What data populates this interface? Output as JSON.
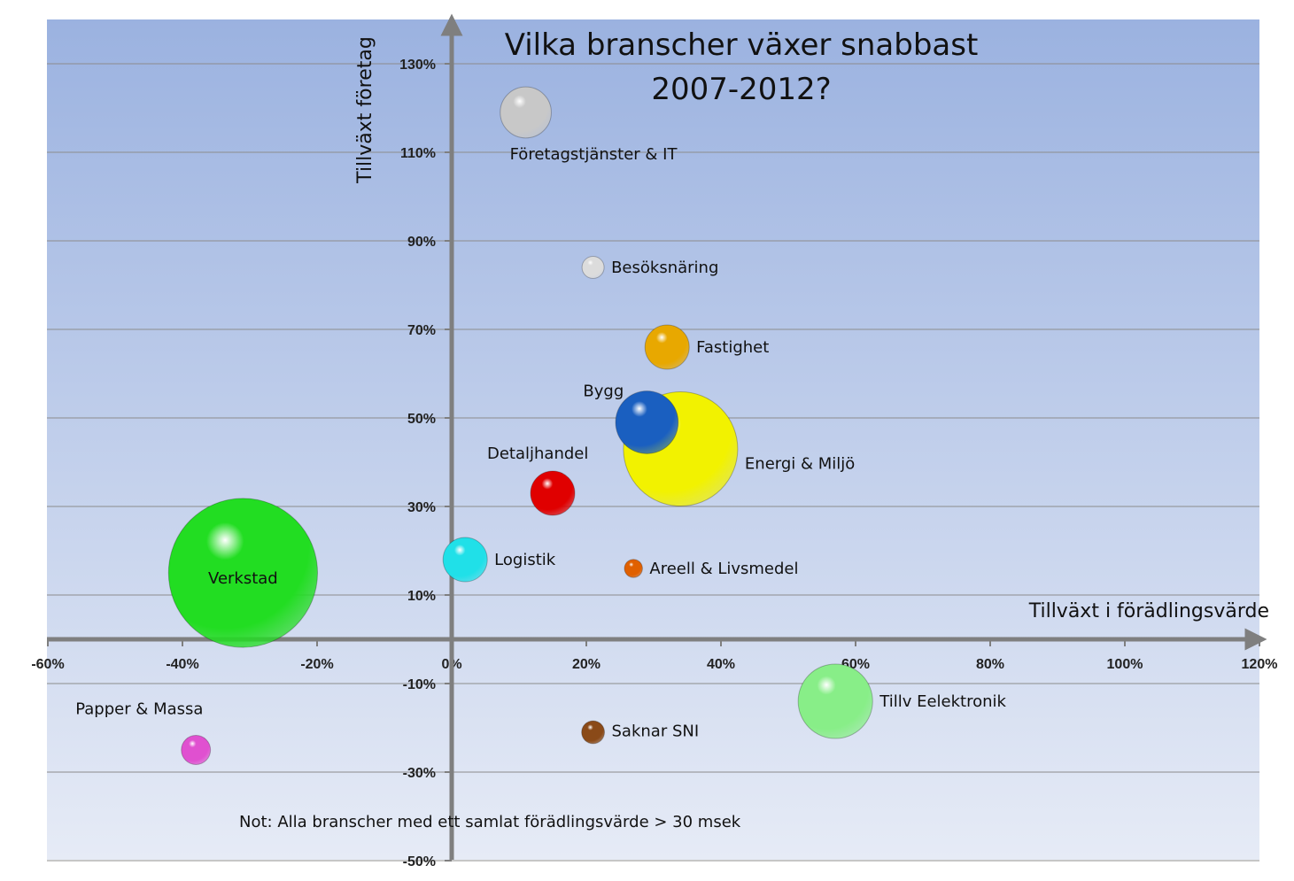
{
  "chart_data": {
    "type": "bubble",
    "title_line1": "Vilka branscher växer snabbast",
    "title_line2": "2007-2012?",
    "xlabel": "Tillväxt i förädlingsvärde",
    "ylabel": "Tillväxt företag",
    "note": "Not: Alla branscher med ett samlat förädlingsvärde > 30 msek",
    "xlim": [
      -60,
      120
    ],
    "ylim": [
      -50,
      140
    ],
    "x_ticks": [
      {
        "value": -60,
        "label": "-60%"
      },
      {
        "value": -40,
        "label": "-40%"
      },
      {
        "value": -20,
        "label": "-20%"
      },
      {
        "value": 0,
        "label": "0%"
      },
      {
        "value": 20,
        "label": "20%"
      },
      {
        "value": 40,
        "label": "40%"
      },
      {
        "value": 60,
        "label": "60%"
      },
      {
        "value": 80,
        "label": "80%"
      },
      {
        "value": 100,
        "label": "100%"
      },
      {
        "value": 120,
        "label": "120%"
      }
    ],
    "y_ticks": [
      {
        "value": 130,
        "label": "130%"
      },
      {
        "value": 110,
        "label": "110%"
      },
      {
        "value": 90,
        "label": "90%"
      },
      {
        "value": 70,
        "label": "70%"
      },
      {
        "value": 50,
        "label": "50%"
      },
      {
        "value": 30,
        "label": "30%"
      },
      {
        "value": 10,
        "label": "10%"
      },
      {
        "value": -10,
        "label": "-10%"
      },
      {
        "value": -30,
        "label": "-30%"
      },
      {
        "value": -50,
        "label": "-50%"
      }
    ],
    "grid": true,
    "series": [
      {
        "name": "Företagstjänster & IT",
        "x": 11,
        "y": 119,
        "size": 8,
        "color": "#c8c8c8",
        "label_pos": "below"
      },
      {
        "name": "Besöksnäring",
        "x": 21,
        "y": 84,
        "size": 1.5,
        "color": "#dcdcdc",
        "label_pos": "right"
      },
      {
        "name": "Fastighet",
        "x": 32,
        "y": 66,
        "size": 6,
        "color": "#e8a800",
        "label_pos": "right"
      },
      {
        "name": "Energi & Miljö",
        "x": 34,
        "y": 43,
        "size": 40,
        "color": "#f2f200",
        "label_pos": "right-below"
      },
      {
        "name": "Bygg",
        "x": 29,
        "y": 49,
        "size": 12,
        "color": "#1a5fc0",
        "label_pos": "left-above"
      },
      {
        "name": "Detaljhandel",
        "x": 15,
        "y": 33,
        "size": 6,
        "color": "#e00000",
        "label_pos": "above"
      },
      {
        "name": "Logistik",
        "x": 2,
        "y": 18,
        "size": 6,
        "color": "#20e0e8",
        "label_pos": "right"
      },
      {
        "name": "Areell & Livsmedel",
        "x": 27,
        "y": 16,
        "size": 1,
        "color": "#e06000",
        "label_pos": "right"
      },
      {
        "name": "Verkstad",
        "x": -31,
        "y": 15,
        "size": 68,
        "color": "#22dd22",
        "label_pos": "center"
      },
      {
        "name": "Tillv Eelektronik",
        "x": 57,
        "y": -14,
        "size": 17,
        "color": "#88ee88",
        "label_pos": "right"
      },
      {
        "name": "Saknar SNI",
        "x": 21,
        "y": -21,
        "size": 1.6,
        "color": "#8a4a18",
        "label_pos": "right-below"
      },
      {
        "name": "Papper & Massa",
        "x": -38,
        "y": -25,
        "size": 2.6,
        "color": "#e050d0",
        "label_pos": "above-left"
      }
    ]
  }
}
